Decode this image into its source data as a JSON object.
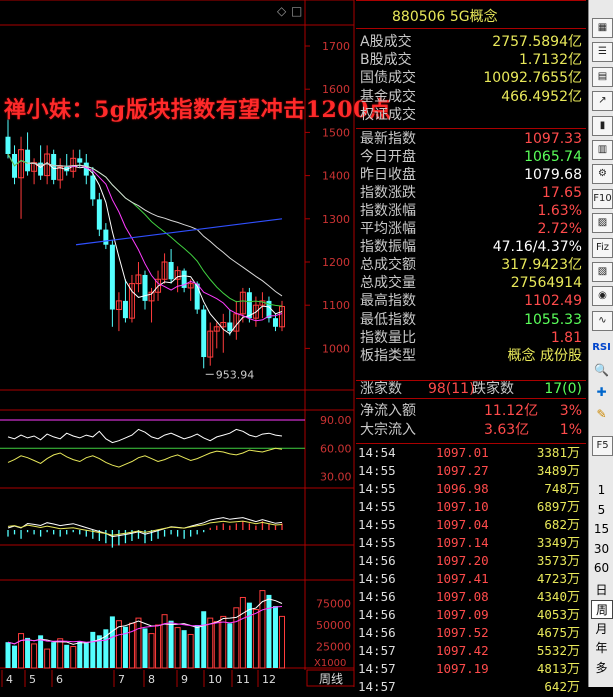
{
  "header": {
    "title": "880506 5G概念"
  },
  "banner": {
    "text": "禅小妹：5g版块指数有望冲击1200点"
  },
  "chart_top_icons": {
    "diamond": "◇",
    "box": "□"
  },
  "price_axis": {
    "labels": [
      "1700",
      "1600",
      "1500",
      "1400",
      "1300",
      "1200",
      "1100",
      "1000"
    ]
  },
  "low_annotation": "953.94",
  "indicator_axis": {
    "labels": [
      "90.00",
      "60.00",
      "30.00"
    ]
  },
  "volume_axis": {
    "labels": [
      "75000",
      "50000",
      "25000"
    ],
    "unit": "X1000"
  },
  "period_button": "周线",
  "x_labels": [
    "4",
    "5",
    "6",
    "7",
    "8",
    "9",
    "10",
    "11",
    "12"
  ],
  "trade_summary": [
    {
      "label": "A股成交",
      "value": "2757.5894",
      "unit": "亿",
      "color": "#e8e85a"
    },
    {
      "label": "B股成交",
      "value": "1.7132",
      "unit": "亿",
      "color": "#e8e85a"
    },
    {
      "label": "国债成交",
      "value": "10092.7655",
      "unit": "亿",
      "color": "#e8e85a"
    },
    {
      "label": "基金成交",
      "value": "466.4952",
      "unit": "亿",
      "color": "#e8e85a"
    },
    {
      "label": "权证成交",
      "value": "",
      "unit": "",
      "color": "#e8e85a"
    }
  ],
  "stats": [
    {
      "label": "最新指数",
      "value": "1097.33",
      "color": "#ff4b4b"
    },
    {
      "label": "今日开盘",
      "value": "1065.74",
      "color": "#5aff5a"
    },
    {
      "label": "昨日收盘",
      "value": "1079.68",
      "color": "#ffffff"
    },
    {
      "label": "指数涨跌",
      "value": "17.65",
      "color": "#ff4b4b"
    },
    {
      "label": "指数涨幅",
      "value": "1.63%",
      "color": "#ff4b4b"
    },
    {
      "label": "平均涨幅",
      "value": "2.72%",
      "color": "#ff4b4b"
    },
    {
      "label": "指数振幅",
      "value": "47.16/4.37%",
      "color": "#ffffff"
    },
    {
      "label": "总成交额",
      "value": "317.9423亿",
      "color": "#e8e85a"
    },
    {
      "label": "总成交量",
      "value": "27564914",
      "color": "#e8e85a"
    },
    {
      "label": "最高指数",
      "value": "1102.49",
      "color": "#ff4b4b"
    },
    {
      "label": "最低指数",
      "value": "1055.33",
      "color": "#5aff5a"
    },
    {
      "label": "指数量比",
      "value": "1.81",
      "color": "#ff4b4b"
    },
    {
      "label": "板指类型",
      "value": "概念 成份股",
      "color": "#e8e85a"
    }
  ],
  "breadth": {
    "up_label": "涨家数",
    "up_value": "98(11)",
    "down_label": "跌家数",
    "down_value": "17(0)"
  },
  "flows": [
    {
      "label": "净流入额",
      "value": "11.12亿",
      "pct": "3%"
    },
    {
      "label": "大宗流入",
      "value": "3.63亿",
      "pct": "1%"
    }
  ],
  "ticks": [
    {
      "time": "14:54",
      "price": "1097.01",
      "vol": "3381",
      "unit": "万"
    },
    {
      "time": "14:55",
      "price": "1097.27",
      "vol": "3489",
      "unit": "万"
    },
    {
      "time": "14:55",
      "price": "1096.98",
      "vol": "748",
      "unit": "万"
    },
    {
      "time": "14:55",
      "price": "1097.10",
      "vol": "6897",
      "unit": "万"
    },
    {
      "time": "14:55",
      "price": "1097.04",
      "vol": "682",
      "unit": "万"
    },
    {
      "time": "14:55",
      "price": "1097.14",
      "vol": "3349",
      "unit": "万"
    },
    {
      "time": "14:56",
      "price": "1097.20",
      "vol": "3573",
      "unit": "万"
    },
    {
      "time": "14:56",
      "price": "1097.41",
      "vol": "4723",
      "unit": "万"
    },
    {
      "time": "14:56",
      "price": "1097.08",
      "vol": "4340",
      "unit": "万"
    },
    {
      "time": "14:56",
      "price": "1097.09",
      "vol": "4053",
      "unit": "万"
    },
    {
      "time": "14:56",
      "price": "1097.52",
      "vol": "4675",
      "unit": "万"
    },
    {
      "time": "14:57",
      "price": "1097.42",
      "vol": "5532",
      "unit": "万"
    },
    {
      "time": "14:57",
      "price": "1097.19",
      "vol": "4813",
      "unit": "万"
    },
    {
      "time": "14:57",
      "price": "",
      "vol": "642",
      "unit": "万"
    }
  ],
  "toolbar": {
    "icons": [
      "grid-icon",
      "list-icon",
      "table-icon",
      "line-chart-icon",
      "candle-icon",
      "bar-icon",
      "gear-icon",
      "F10",
      "chart-icon",
      "Fiz",
      "chart2-icon",
      "circle-icon",
      "wave-icon"
    ],
    "rsi": "RSI",
    "f5": "F5",
    "periods": [
      "1",
      "5",
      "15",
      "30",
      "60",
      "日",
      "周",
      "月",
      "年",
      "多"
    ]
  },
  "chart_data": {
    "type": "candlestick",
    "ylim": [
      940,
      1740
    ],
    "low_marker": 953.94,
    "candles": [
      {
        "o": 1490,
        "h": 1530,
        "l": 1440,
        "c": 1450
      },
      {
        "o": 1450,
        "h": 1470,
        "l": 1380,
        "c": 1395
      },
      {
        "o": 1395,
        "h": 1490,
        "l": 1300,
        "c": 1460
      },
      {
        "o": 1460,
        "h": 1500,
        "l": 1400,
        "c": 1410
      },
      {
        "o": 1410,
        "h": 1440,
        "l": 1380,
        "c": 1430
      },
      {
        "o": 1430,
        "h": 1470,
        "l": 1390,
        "c": 1400
      },
      {
        "o": 1400,
        "h": 1470,
        "l": 1380,
        "c": 1450
      },
      {
        "o": 1450,
        "h": 1460,
        "l": 1380,
        "c": 1390
      },
      {
        "o": 1390,
        "h": 1440,
        "l": 1370,
        "c": 1420
      },
      {
        "o": 1420,
        "h": 1450,
        "l": 1400,
        "c": 1410
      },
      {
        "o": 1410,
        "h": 1460,
        "l": 1395,
        "c": 1440
      },
      {
        "o": 1440,
        "h": 1460,
        "l": 1420,
        "c": 1430
      },
      {
        "o": 1430,
        "h": 1450,
        "l": 1380,
        "c": 1400
      },
      {
        "o": 1400,
        "h": 1420,
        "l": 1330,
        "c": 1345
      },
      {
        "o": 1345,
        "h": 1360,
        "l": 1260,
        "c": 1275
      },
      {
        "o": 1275,
        "h": 1290,
        "l": 1230,
        "c": 1240
      },
      {
        "o": 1240,
        "h": 1250,
        "l": 1050,
        "c": 1090
      },
      {
        "o": 1090,
        "h": 1130,
        "l": 1040,
        "c": 1110
      },
      {
        "o": 1110,
        "h": 1160,
        "l": 1060,
        "c": 1070
      },
      {
        "o": 1070,
        "h": 1170,
        "l": 1060,
        "c": 1150
      },
      {
        "o": 1150,
        "h": 1200,
        "l": 1130,
        "c": 1170
      },
      {
        "o": 1170,
        "h": 1180,
        "l": 1090,
        "c": 1110
      },
      {
        "o": 1110,
        "h": 1140,
        "l": 1060,
        "c": 1130
      },
      {
        "o": 1130,
        "h": 1180,
        "l": 1110,
        "c": 1160
      },
      {
        "o": 1160,
        "h": 1220,
        "l": 1150,
        "c": 1200
      },
      {
        "o": 1200,
        "h": 1230,
        "l": 1150,
        "c": 1160
      },
      {
        "o": 1160,
        "h": 1190,
        "l": 1130,
        "c": 1180
      },
      {
        "o": 1180,
        "h": 1185,
        "l": 1130,
        "c": 1140
      },
      {
        "o": 1140,
        "h": 1160,
        "l": 1110,
        "c": 1150
      },
      {
        "o": 1150,
        "h": 1155,
        "l": 1080,
        "c": 1090
      },
      {
        "o": 1090,
        "h": 1100,
        "l": 953.94,
        "c": 980
      },
      {
        "o": 980,
        "h": 1060,
        "l": 960,
        "c": 1040
      },
      {
        "o": 1040,
        "h": 1060,
        "l": 1000,
        "c": 1050
      },
      {
        "o": 1050,
        "h": 1080,
        "l": 990,
        "c": 1060
      },
      {
        "o": 1060,
        "h": 1090,
        "l": 1030,
        "c": 1040
      },
      {
        "o": 1040,
        "h": 1110,
        "l": 1020,
        "c": 1080
      },
      {
        "o": 1080,
        "h": 1140,
        "l": 1060,
        "c": 1130
      },
      {
        "o": 1130,
        "h": 1140,
        "l": 1060,
        "c": 1070
      },
      {
        "o": 1070,
        "h": 1120,
        "l": 1050,
        "c": 1100
      },
      {
        "o": 1100,
        "h": 1130,
        "l": 1070,
        "c": 1110
      },
      {
        "o": 1110,
        "h": 1120,
        "l": 1060,
        "c": 1070
      },
      {
        "o": 1070,
        "h": 1080,
        "l": 1040,
        "c": 1050
      },
      {
        "o": 1050,
        "h": 1110,
        "l": 1040,
        "c": 1097
      }
    ],
    "volumes": [
      30,
      26,
      40,
      35,
      28,
      38,
      22,
      30,
      34,
      27,
      25,
      31,
      29,
      42,
      38,
      45,
      60,
      55,
      48,
      52,
      58,
      46,
      40,
      50,
      62,
      55,
      47,
      44,
      39,
      50,
      66,
      58,
      54,
      60,
      52,
      70,
      82,
      76,
      68,
      90,
      85,
      72,
      60
    ],
    "vol_ylim": [
      0,
      100
    ],
    "indicator_k": [
      72,
      70,
      74,
      71,
      73,
      69,
      75,
      72,
      70,
      76,
      73,
      71,
      74,
      72,
      78,
      70,
      66,
      68,
      71,
      74,
      80,
      77,
      72,
      70,
      74,
      76,
      73,
      70,
      72,
      75,
      71,
      68,
      72,
      74,
      76,
      80,
      78,
      74,
      72,
      75,
      76,
      74,
      73
    ],
    "indicator_d": [
      45,
      48,
      52,
      50,
      47,
      44,
      49,
      53,
      55,
      51,
      48,
      46,
      50,
      52,
      49,
      45,
      42,
      40,
      43,
      46,
      50,
      52,
      49,
      46,
      48,
      51,
      53,
      50,
      47,
      49,
      52,
      55,
      57,
      56,
      54,
      53,
      55,
      58,
      57,
      56,
      58,
      60,
      59
    ],
    "indicator_ylim": [
      20,
      100
    ],
    "macd": [
      -3,
      -2,
      -4,
      -1,
      -2,
      -3,
      -1,
      -2,
      -3,
      -2,
      -1,
      -2,
      -3,
      -4,
      -5,
      -6,
      -8,
      -7,
      -6,
      -5,
      -4,
      -6,
      -5,
      -4,
      -3,
      -2,
      -3,
      -4,
      -3,
      -2,
      -1,
      1,
      2,
      3,
      2,
      3,
      4,
      3,
      2,
      4,
      3,
      2,
      3
    ]
  }
}
